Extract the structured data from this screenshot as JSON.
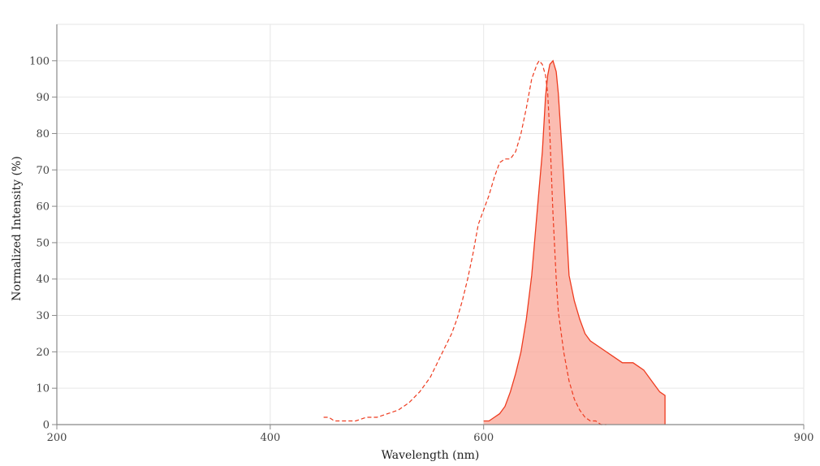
{
  "chart_data": {
    "type": "area",
    "xlabel": "Wavelength (nm)",
    "ylabel": "Normalized Intensity (%)",
    "xlim": [
      200,
      900
    ],
    "ylim": [
      0,
      110
    ],
    "x_ticks": [
      200,
      400,
      600,
      900
    ],
    "y_ticks": [
      0,
      10,
      20,
      30,
      40,
      50,
      60,
      70,
      80,
      90,
      100
    ],
    "grid": true,
    "legend": "none",
    "colors": {
      "line": "#ee3b1f",
      "fill": "#f9a597"
    },
    "series": [
      {
        "style": "dashed line",
        "x": [
          450,
          455,
          460,
          470,
          480,
          490,
          500,
          510,
          520,
          530,
          540,
          550,
          560,
          570,
          575,
          580,
          585,
          590,
          595,
          600,
          605,
          610,
          615,
          620,
          625,
          630,
          635,
          640,
          645,
          650,
          652,
          655,
          658,
          660,
          662,
          665,
          668,
          670,
          675,
          680,
          685,
          690,
          695,
          700,
          705,
          710,
          715
        ],
        "y": [
          2,
          2,
          1,
          1,
          1,
          2,
          2,
          3,
          4,
          6,
          9,
          13,
          19,
          25,
          29,
          34,
          40,
          47,
          55,
          59,
          63,
          68,
          72,
          73,
          73,
          75,
          80,
          87,
          95,
          99,
          100,
          99,
          96,
          91,
          80,
          58,
          40,
          31,
          20,
          12,
          7,
          4,
          2,
          1,
          1,
          0,
          0
        ]
      },
      {
        "style": "solid line with filled area",
        "x": [
          600,
          605,
          610,
          615,
          620,
          625,
          630,
          635,
          640,
          645,
          650,
          655,
          658,
          660,
          662,
          665,
          668,
          670,
          672,
          675,
          678,
          680,
          685,
          690,
          695,
          700,
          705,
          710,
          715,
          720,
          725,
          730,
          735,
          740,
          745,
          750,
          755,
          760,
          765,
          770,
          750
        ],
        "y": [
          1,
          1,
          2,
          3,
          5,
          9,
          14,
          20,
          29,
          41,
          58,
          75,
          90,
          96,
          99,
          100,
          97,
          91,
          82,
          68,
          52,
          41,
          34,
          29,
          25,
          23,
          22,
          21,
          20,
          19,
          18,
          17,
          17,
          17,
          16,
          15,
          13,
          11,
          9,
          8,
          0
        ]
      }
    ]
  }
}
